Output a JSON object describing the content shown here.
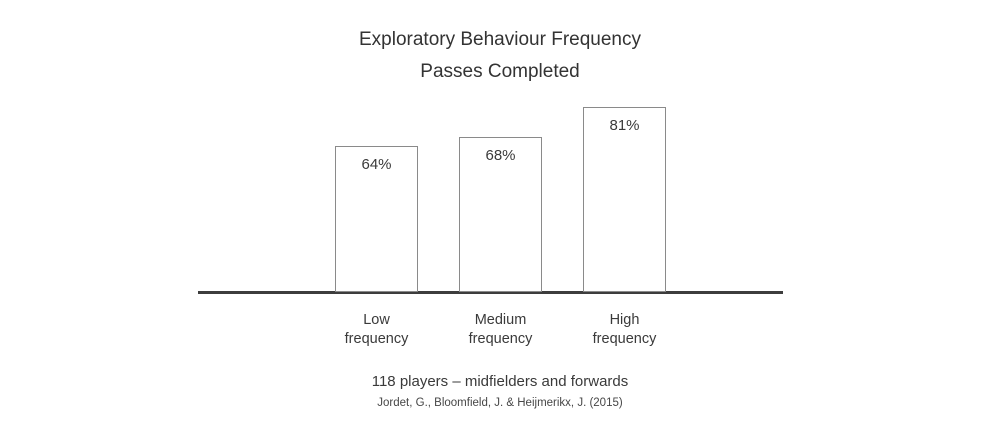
{
  "chart_data": {
    "type": "bar",
    "title": "Exploratory Behaviour Frequency",
    "subtitle": "Passes Completed",
    "categories": [
      "Low\nfrequency",
      "Medium\nfrequency",
      "High\nfrequency"
    ],
    "values": [
      64,
      68,
      81
    ],
    "value_labels": [
      "64%",
      "68%",
      "81%"
    ],
    "xlabel": "",
    "ylabel": "",
    "ylim": [
      0,
      100
    ],
    "grid": false,
    "legend": false,
    "bar_fill": "#ffffff",
    "bar_border_color": "#8a8a8a",
    "axis_color": "#3d3d3d",
    "text_color": "#3a3a3a"
  },
  "caption": "118 players – midfielders and forwards",
  "citation": "Jordet, G., Bloomfield, J. & Heijmerikx, J. (2015)"
}
